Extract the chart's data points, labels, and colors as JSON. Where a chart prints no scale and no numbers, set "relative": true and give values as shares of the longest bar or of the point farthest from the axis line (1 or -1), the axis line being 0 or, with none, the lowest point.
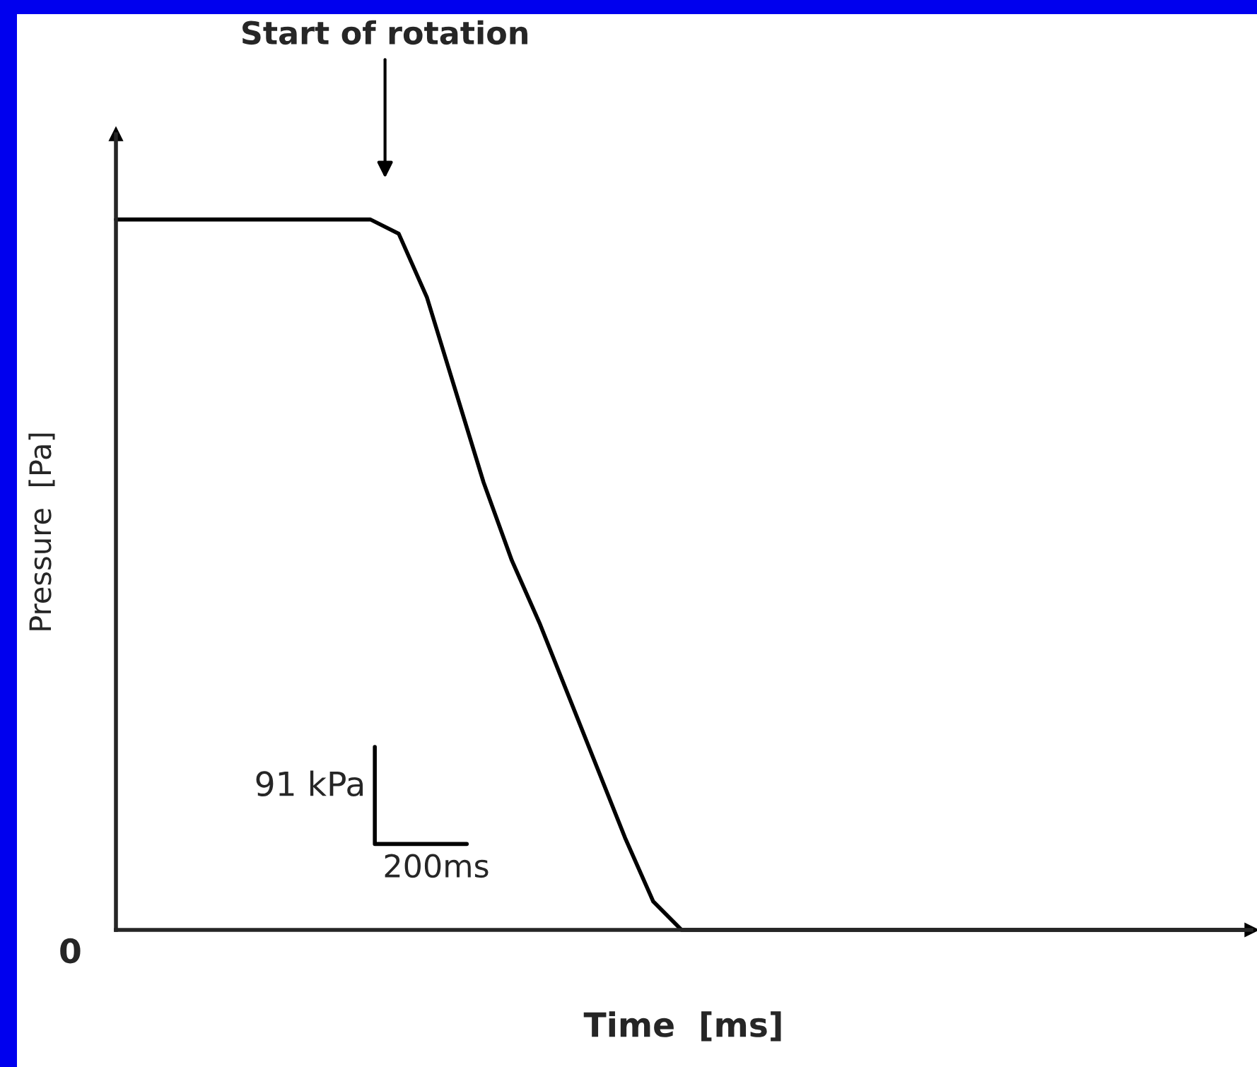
{
  "chart_data": {
    "type": "line",
    "relative": true,
    "xlabel": "Time  [ms]",
    "ylabel": "Pressure  [Pa]",
    "categories": [
      null,
      null,
      null,
      null,
      null,
      null,
      null,
      null,
      null,
      null,
      null,
      null,
      null,
      null,
      null,
      null,
      null,
      null,
      null,
      null,
      null,
      null,
      null,
      null,
      null,
      null,
      null,
      null,
      null,
      null,
      null,
      null,
      null,
      null,
      null,
      null,
      null,
      null,
      null,
      null,
      null
    ],
    "series": [
      {
        "color": "#000000",
        "values": [
          1,
          1,
          1,
          1,
          1,
          1,
          1,
          1,
          1,
          1,
          0.98,
          0.89,
          0.76,
          0.63,
          0.52,
          0.43,
          0.33,
          0.23,
          0.13,
          0.04,
          0,
          0,
          0,
          0,
          0,
          0,
          0,
          0,
          0,
          0,
          0,
          0,
          0,
          0,
          0,
          0,
          0,
          0,
          0,
          0,
          0
        ]
      }
    ],
    "annotations": [
      "Start of rotation",
      "0",
      "91 kPa",
      "200ms"
    ],
    "marker": "none",
    "line_style": "solid",
    "legend": false
  }
}
